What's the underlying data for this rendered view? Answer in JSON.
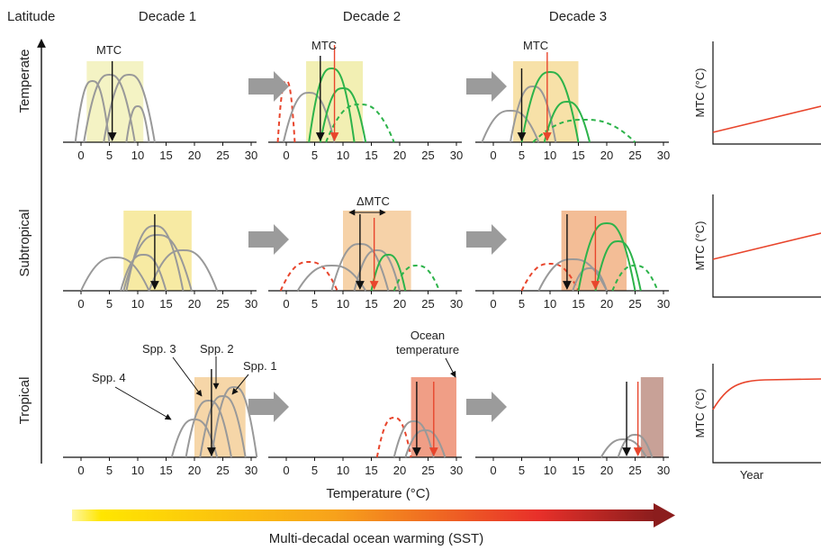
{
  "header": {
    "latitude": "Latitude",
    "decades": [
      "Decade 1",
      "Decade 2",
      "Decade 3"
    ]
  },
  "rows": [
    "Temperate",
    "Subtropical",
    "Tropical"
  ],
  "axis": {
    "ticks": [
      "0",
      "5",
      "10",
      "15",
      "20",
      "25",
      "30"
    ],
    "xlabel": "Temperature (°C)"
  },
  "labels": {
    "mtc": "MTC",
    "delta_mtc": "ΔMTC",
    "ocean_temperature_line1": "Ocean",
    "ocean_temperature_line2": "temperature",
    "species": [
      "Spp. 1",
      "Spp. 2",
      "Spp. 3",
      "Spp. 4"
    ]
  },
  "mini_charts": {
    "ylabel": "MTC (°C)",
    "xlabel": "Year"
  },
  "footer": {
    "caption": "Multi-decadal ocean warming (SST)"
  },
  "colors": {
    "curve": "#999999",
    "warm_species": "#2db34a",
    "lost_species": "#e8452c",
    "mtc_arrow": "#111111",
    "ocean_arrow": "#e8452c",
    "box_temperate_1": "#f4f3c4",
    "box_temperate_2": "#f2efb3",
    "box_temperate_3": "#f7e1a8",
    "box_subtropical_1": "#f7eaa3",
    "box_subtropical_2": "#f6d2a8",
    "box_subtropical_3": "#f3bd96",
    "box_tropical_1": "#f6d6a8",
    "box_tropical_2": "#f09e86",
    "box_tropical_3": "#c8a197"
  }
}
